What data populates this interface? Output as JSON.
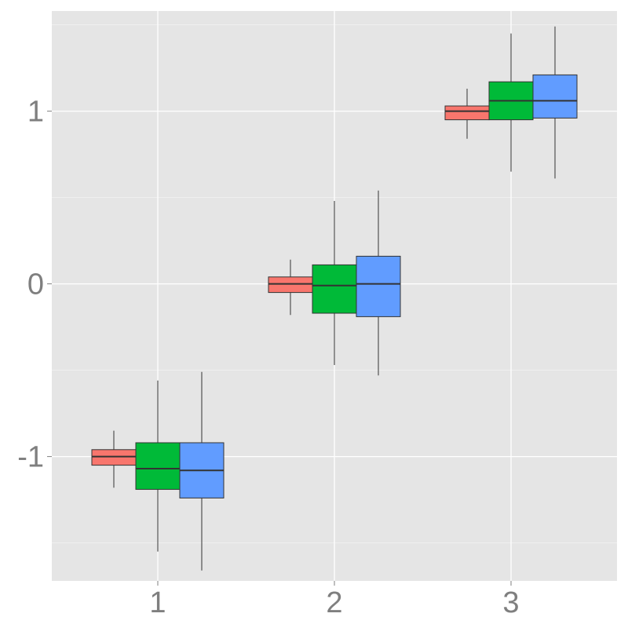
{
  "chart_data": {
    "type": "boxplot",
    "title": "",
    "xlabel": "",
    "ylabel": "",
    "categories": [
      "1",
      "2",
      "3"
    ],
    "ylim": [
      -1.72,
      1.58
    ],
    "yticks": [
      -1,
      0,
      1
    ],
    "grid": true,
    "legend": "none",
    "colors": {
      "panel_background": "#e5e5e5",
      "grid": "#ffffff",
      "series": [
        "#f8766d",
        "#00ba38",
        "#619cff"
      ],
      "box_outline": "#333333",
      "tick_text": "#7f7f7f"
    },
    "series": [
      {
        "color": "#f8766d",
        "boxes": [
          {
            "category": "1",
            "whisker_low": -1.18,
            "q1": -1.05,
            "median": -1.0,
            "q3": -0.96,
            "whisker_high": -0.85
          },
          {
            "category": "2",
            "whisker_low": -0.18,
            "q1": -0.05,
            "median": 0.0,
            "q3": 0.04,
            "whisker_high": 0.14
          },
          {
            "category": "3",
            "whisker_low": 0.84,
            "q1": 0.95,
            "median": 1.0,
            "q3": 1.03,
            "whisker_high": 1.13
          }
        ]
      },
      {
        "color": "#00ba38",
        "boxes": [
          {
            "category": "1",
            "whisker_low": -1.55,
            "q1": -1.19,
            "median": -1.07,
            "q3": -0.92,
            "whisker_high": -0.56
          },
          {
            "category": "2",
            "whisker_low": -0.47,
            "q1": -0.17,
            "median": -0.01,
            "q3": 0.11,
            "whisker_high": 0.48
          },
          {
            "category": "3",
            "whisker_low": 0.65,
            "q1": 0.95,
            "median": 1.06,
            "q3": 1.17,
            "whisker_high": 1.45
          }
        ]
      },
      {
        "color": "#619cff",
        "boxes": [
          {
            "category": "1",
            "whisker_low": -1.66,
            "q1": -1.24,
            "median": -1.08,
            "q3": -0.92,
            "whisker_high": -0.51
          },
          {
            "category": "2",
            "whisker_low": -0.53,
            "q1": -0.19,
            "median": 0.0,
            "q3": 0.16,
            "whisker_high": 0.54
          },
          {
            "category": "3",
            "whisker_low": 0.61,
            "q1": 0.96,
            "median": 1.06,
            "q3": 1.21,
            "whisker_high": 1.49
          }
        ]
      }
    ]
  }
}
